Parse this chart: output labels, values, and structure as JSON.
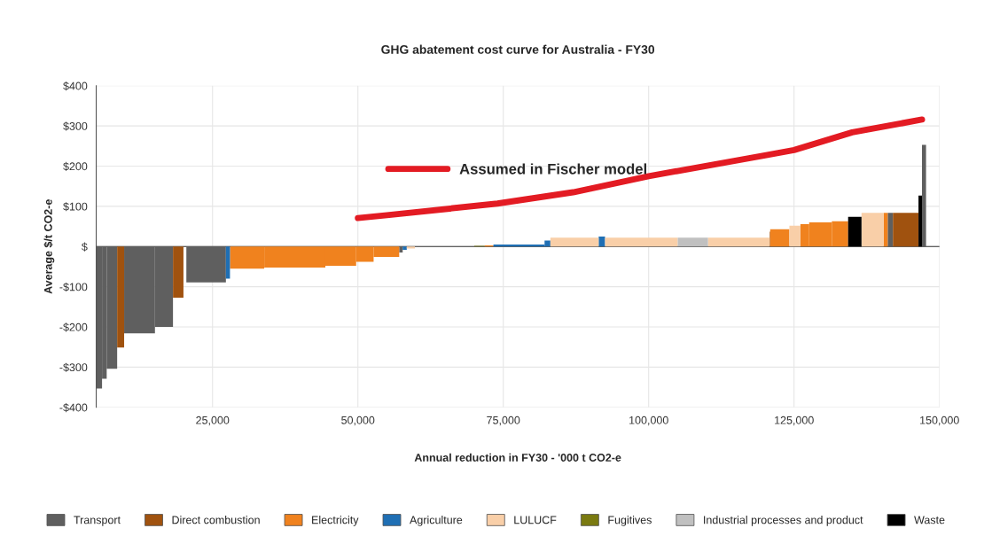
{
  "chart_data": {
    "type": "histogram",
    "title": "GHG abatement cost curve for Australia - FY30",
    "xlabel": "Annual reduction in FY30 - '000 t CO2-e",
    "ylabel": "Average $/t CO2-e",
    "xlim": [
      5000,
      150000
    ],
    "xticks": [
      {
        "value": 25000,
        "label": "25,000"
      },
      {
        "value": 50000,
        "label": "50,000"
      },
      {
        "value": 75000,
        "label": "75,000"
      },
      {
        "value": 100000,
        "label": "100,000"
      },
      {
        "value": 125000,
        "label": "125,000"
      },
      {
        "value": 150000,
        "label": "150,000"
      }
    ],
    "ylim": [
      -400,
      400
    ],
    "yticks": [
      {
        "value": -400,
        "label": "-$400"
      },
      {
        "value": -300,
        "label": "-$300"
      },
      {
        "value": -200,
        "label": "-$200"
      },
      {
        "value": -100,
        "label": "-$100"
      },
      {
        "value": 0,
        "label": "$"
      },
      {
        "value": 100,
        "label": "$100"
      },
      {
        "value": 200,
        "label": "$200"
      },
      {
        "value": 300,
        "label": "$300"
      },
      {
        "value": 400,
        "label": "$400"
      }
    ],
    "grid": true,
    "legend": "bottom",
    "ref_lines": [
      {
        "axis": "y",
        "value": 0,
        "color": "#333333"
      }
    ],
    "series": [
      {
        "name": "Transport",
        "color": "#5f5f5f",
        "bins": [
          5000,
          6000,
          6800,
          8600,
          9800,
          15100,
          18200,
          20500,
          27300,
          57100,
          57700,
          141100,
          142000,
          147000,
          147700
        ],
        "values": [
          -353,
          -329,
          -304,
          null,
          -216,
          -200,
          null,
          -89,
          null,
          -15,
          null,
          84,
          null,
          253
        ]
      },
      {
        "name": "Direct combustion",
        "color": "#a0520f",
        "bins": [
          8600,
          9800,
          18200,
          20000,
          120800,
          120900,
          142000,
          146400
        ],
        "values": [
          -251,
          null,
          -127,
          null,
          37,
          null,
          84
        ]
      },
      {
        "name": "Electricity",
        "color": "#f0821e",
        "bins": [
          28000,
          33900,
          44400,
          49700,
          52700,
          57100,
          71800,
          73300,
          120900,
          124200,
          126100,
          127600,
          131500,
          134300,
          140400,
          141100
        ],
        "values": [
          -55,
          -52,
          -48,
          -38,
          -26,
          null,
          3,
          null,
          43,
          null,
          56,
          60,
          63,
          null,
          84
        ]
      },
      {
        "name": "Agriculture",
        "color": "#1f6fb4",
        "bins": [
          27300,
          28000,
          57700,
          58400,
          73300,
          82100,
          83100,
          91400,
          92500
        ],
        "values": [
          -80,
          null,
          -8,
          null,
          5,
          15,
          null,
          25
        ]
      },
      {
        "name": "LULUCF",
        "color": "#f9cfa8",
        "bins": [
          58400,
          59800,
          83100,
          91400,
          92500,
          105000,
          110200,
          120800,
          124200,
          126100,
          136600,
          140400
        ],
        "values": [
          -5,
          null,
          22,
          null,
          22,
          null,
          22,
          null,
          52,
          null,
          84
        ]
      },
      {
        "name": "Fugitives",
        "color": "#7a7a10",
        "bins": [
          70000,
          71800
        ],
        "values": [
          2
        ]
      },
      {
        "name": "Industrial processes and product",
        "color": "#c0c0c0",
        "bins": [
          105000,
          110200
        ],
        "values": [
          22
        ]
      },
      {
        "name": "Waste",
        "color": "#000000",
        "bins": [
          134300,
          136600,
          146400,
          147000
        ],
        "values": [
          74,
          null,
          127
        ]
      },
      {
        "name": "Assumed in Fischer model",
        "type": "line",
        "color": "#e31b23",
        "x": [
          50000,
          55000,
          74000,
          87000,
          100000,
          120000,
          125000,
          135000,
          147000
        ],
        "values": [
          71,
          78,
          107,
          135,
          175,
          227,
          240,
          284,
          316
        ]
      }
    ]
  }
}
